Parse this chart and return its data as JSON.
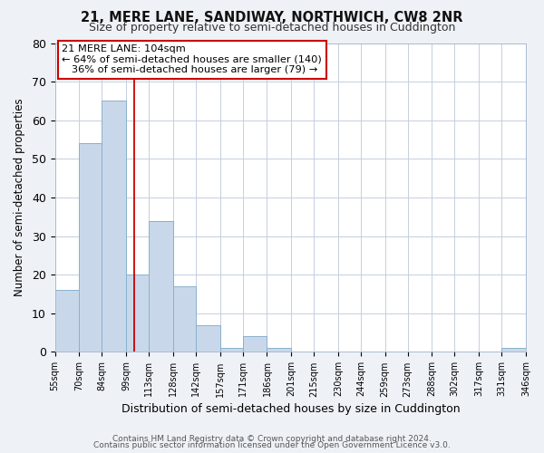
{
  "title1": "21, MERE LANE, SANDIWAY, NORTHWICH, CW8 2NR",
  "title2": "Size of property relative to semi-detached houses in Cuddington",
  "xlabel": "Distribution of semi-detached houses by size in Cuddington",
  "ylabel": "Number of semi-detached properties",
  "bar_left_edges": [
    55,
    70,
    84,
    99,
    113,
    128,
    142,
    157,
    171,
    186,
    201,
    215,
    230,
    244,
    259,
    273,
    288,
    302,
    317,
    331
  ],
  "bar_widths": [
    15,
    14,
    15,
    14,
    15,
    14,
    15,
    14,
    15,
    15,
    14,
    15,
    14,
    15,
    14,
    15,
    14,
    15,
    14,
    15
  ],
  "bar_heights": [
    16,
    54,
    65,
    20,
    34,
    17,
    7,
    1,
    4,
    1,
    0,
    0,
    0,
    0,
    0,
    0,
    0,
    0,
    0,
    1
  ],
  "tick_labels": [
    "55sqm",
    "70sqm",
    "84sqm",
    "99sqm",
    "113sqm",
    "128sqm",
    "142sqm",
    "157sqm",
    "171sqm",
    "186sqm",
    "201sqm",
    "215sqm",
    "230sqm",
    "244sqm",
    "259sqm",
    "273sqm",
    "288sqm",
    "302sqm",
    "317sqm",
    "331sqm",
    "346sqm"
  ],
  "bar_color": "#c8d8ea",
  "bar_edge_color": "#8ab0cc",
  "bar_edge_width": 0.7,
  "vline_x": 104,
  "vline_color": "#cc0000",
  "ylim": [
    0,
    80
  ],
  "yticks": [
    0,
    10,
    20,
    30,
    40,
    50,
    60,
    70,
    80
  ],
  "annot_line1": "21 MERE LANE: 104sqm",
  "annot_line2": "← 64% of semi-detached houses are smaller (140)",
  "annot_line3": "   36% of semi-detached houses are larger (79) →",
  "footer1": "Contains HM Land Registry data © Crown copyright and database right 2024.",
  "footer2": "Contains public sector information licensed under the Open Government Licence v3.0.",
  "bg_color": "#eef2f7",
  "plot_bg_color": "#ffffff",
  "grid_color": "#c5cfe0"
}
